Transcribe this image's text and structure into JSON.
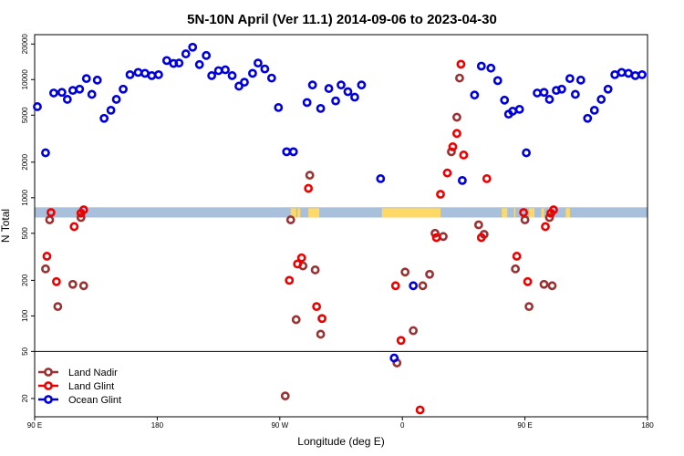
{
  "chart_data": {
    "type": "scatter",
    "title": "5N-10N April (Ver 11.1)   2014-09-06 to 2023-04-30",
    "xlabel": "Longitude (deg E)",
    "ylabel": "N Total",
    "x_scale": "linear",
    "y_scale": "log",
    "xlim": [
      90,
      540
    ],
    "ylim": [
      14,
      24000
    ],
    "x_ticks": [
      {
        "value": 90,
        "label": "90 E"
      },
      {
        "value": 180,
        "label": "180"
      },
      {
        "value": 270,
        "label": "90 W"
      },
      {
        "value": 360,
        "label": "0"
      },
      {
        "value": 450,
        "label": "90 E"
      },
      {
        "value": 540,
        "label": "180"
      }
    ],
    "y_ticks": [
      {
        "value": 20,
        "label": "20"
      },
      {
        "value": 50,
        "label": "50"
      },
      {
        "value": 100,
        "label": "100"
      },
      {
        "value": 200,
        "label": "200"
      },
      {
        "value": 500,
        "label": "500"
      },
      {
        "value": 1000,
        "label": "1000"
      },
      {
        "value": 2000,
        "label": "2000"
      },
      {
        "value": 5000,
        "label": "5000"
      },
      {
        "value": 10000,
        "label": "10000"
      },
      {
        "value": 20000,
        "label": "20000"
      }
    ],
    "reference_line_y": 50,
    "land_mask_band": {
      "y_min": 680,
      "y_max": 830,
      "ocean_color": "#A8C0DC",
      "land_color": "#FFD966",
      "land_ranges": [
        [
          278,
          282
        ],
        [
          283,
          285
        ],
        [
          291,
          299
        ],
        [
          345,
          388
        ],
        [
          433,
          437
        ],
        [
          442,
          443
        ],
        [
          453,
          457
        ],
        [
          462,
          464
        ],
        [
          467,
          469
        ],
        [
          480,
          483
        ]
      ]
    },
    "legend_position": "bottom-left",
    "series": [
      {
        "name": "Land Nadir",
        "color": "#993333",
        "points": [
          [
            98,
            250
          ],
          [
            101,
            650
          ],
          [
            107,
            120
          ],
          [
            118,
            185
          ],
          [
            124,
            680
          ],
          [
            126,
            180
          ],
          [
            274,
            21
          ],
          [
            278,
            650
          ],
          [
            282,
            93
          ],
          [
            287,
            265
          ],
          [
            292,
            1550
          ],
          [
            296,
            245
          ],
          [
            300,
            70
          ],
          [
            356,
            40
          ],
          [
            362,
            235
          ],
          [
            368,
            75
          ],
          [
            375,
            180
          ],
          [
            380,
            225
          ],
          [
            384,
            500
          ],
          [
            390,
            470
          ],
          [
            396,
            2450
          ],
          [
            400,
            4800
          ],
          [
            402,
            10300
          ],
          [
            416,
            590
          ],
          [
            420,
            490
          ],
          [
            443,
            250
          ],
          [
            450,
            650
          ],
          [
            453,
            120
          ],
          [
            464,
            185
          ],
          [
            468,
            680
          ],
          [
            470,
            180
          ]
        ]
      },
      {
        "name": "Land Glint",
        "color": "#EE0000",
        "points": [
          [
            99,
            320
          ],
          [
            102,
            750
          ],
          [
            106,
            195
          ],
          [
            119,
            570
          ],
          [
            124,
            740
          ],
          [
            126,
            790
          ],
          [
            277,
            200
          ],
          [
            283,
            275
          ],
          [
            286,
            310
          ],
          [
            291,
            1200
          ],
          [
            297,
            120
          ],
          [
            301,
            95
          ],
          [
            355,
            180
          ],
          [
            359,
            62
          ],
          [
            373,
            16
          ],
          [
            385,
            460
          ],
          [
            388,
            1070
          ],
          [
            393,
            1620
          ],
          [
            397,
            2700
          ],
          [
            400,
            3500
          ],
          [
            403,
            13500
          ],
          [
            405,
            2300
          ],
          [
            418,
            460
          ],
          [
            422,
            1450
          ],
          [
            444,
            320
          ],
          [
            449,
            750
          ],
          [
            452,
            195
          ],
          [
            465,
            570
          ],
          [
            469,
            740
          ],
          [
            471,
            790
          ]
        ]
      },
      {
        "name": "Ocean Glint",
        "color": "#0000DD",
        "points": [
          [
            92,
            5900
          ],
          [
            98,
            2400
          ],
          [
            104,
            7700
          ],
          [
            110,
            7800
          ],
          [
            114,
            6800
          ],
          [
            118,
            8100
          ],
          [
            123,
            8300
          ],
          [
            128,
            10200
          ],
          [
            132,
            7500
          ],
          [
            136,
            9900
          ],
          [
            141,
            4700
          ],
          [
            146,
            5500
          ],
          [
            150,
            6800
          ],
          [
            155,
            8300
          ],
          [
            160,
            11000
          ],
          [
            166,
            11500
          ],
          [
            171,
            11300
          ],
          [
            176,
            10800
          ],
          [
            181,
            11000
          ],
          [
            187,
            14500
          ],
          [
            192,
            13700
          ],
          [
            196,
            13800
          ],
          [
            201,
            16500
          ],
          [
            206,
            18800
          ],
          [
            211,
            13400
          ],
          [
            216,
            16000
          ],
          [
            220,
            10800
          ],
          [
            225,
            11900
          ],
          [
            230,
            12100
          ],
          [
            235,
            10800
          ],
          [
            240,
            8800
          ],
          [
            244,
            9500
          ],
          [
            250,
            11300
          ],
          [
            254,
            13800
          ],
          [
            259,
            12300
          ],
          [
            264,
            10300
          ],
          [
            269,
            5800
          ],
          [
            275,
            2450
          ],
          [
            280,
            2450
          ],
          [
            290,
            6400
          ],
          [
            294,
            9000
          ],
          [
            300,
            5700
          ],
          [
            306,
            8400
          ],
          [
            311,
            6600
          ],
          [
            315,
            9000
          ],
          [
            320,
            7900
          ],
          [
            325,
            7100
          ],
          [
            330,
            9000
          ],
          [
            344,
            1450
          ],
          [
            354,
            44
          ],
          [
            368,
            180
          ],
          [
            404,
            1400
          ],
          [
            413,
            7400
          ],
          [
            418,
            13000
          ],
          [
            425,
            12500
          ],
          [
            430,
            9800
          ],
          [
            435,
            6700
          ],
          [
            438,
            5100
          ],
          [
            441,
            5400
          ],
          [
            446,
            5600
          ],
          [
            451,
            2400
          ],
          [
            459,
            7700
          ],
          [
            464,
            7800
          ],
          [
            468,
            6800
          ],
          [
            473,
            8100
          ],
          [
            477,
            8300
          ],
          [
            483,
            10200
          ],
          [
            487,
            7500
          ],
          [
            491,
            9900
          ],
          [
            496,
            4700
          ],
          [
            501,
            5500
          ],
          [
            506,
            6800
          ],
          [
            511,
            8300
          ],
          [
            516,
            11000
          ],
          [
            521,
            11500
          ],
          [
            526,
            11300
          ],
          [
            531,
            10800
          ],
          [
            536,
            11000
          ]
        ]
      }
    ]
  }
}
